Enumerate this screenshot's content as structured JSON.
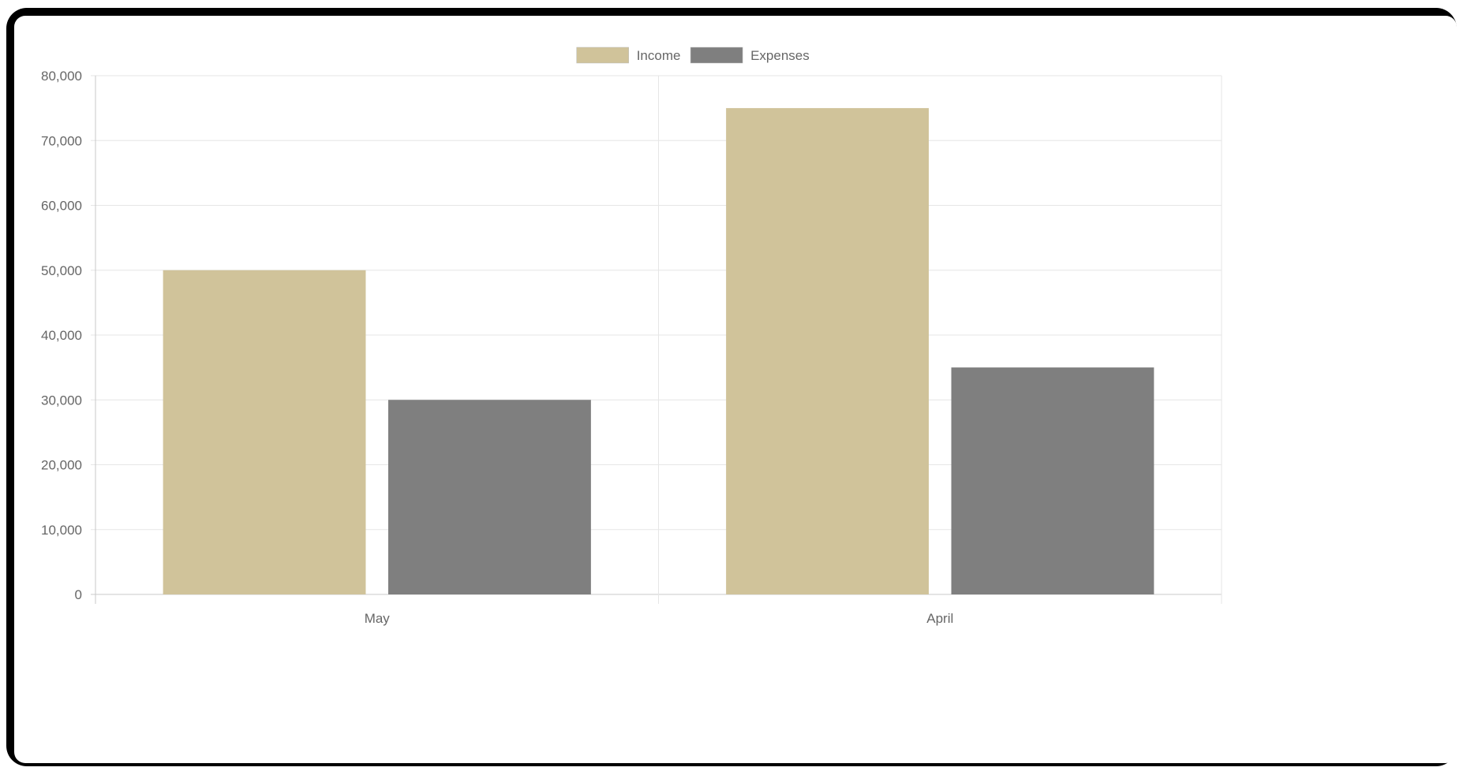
{
  "chart_data": {
    "type": "bar",
    "categories": [
      "May",
      "April"
    ],
    "series": [
      {
        "name": "Income",
        "values": [
          50000,
          75000
        ],
        "color": "#d0c39a"
      },
      {
        "name": "Expenses",
        "values": [
          30000,
          35000
        ],
        "color": "#7f7f7f"
      }
    ],
    "ylim": [
      0,
      80000
    ],
    "y_ticks": [
      "0",
      "10,000",
      "20,000",
      "30,000",
      "40,000",
      "50,000",
      "60,000",
      "70,000",
      "80,000"
    ],
    "grid": true,
    "legend_position": "top-center"
  }
}
